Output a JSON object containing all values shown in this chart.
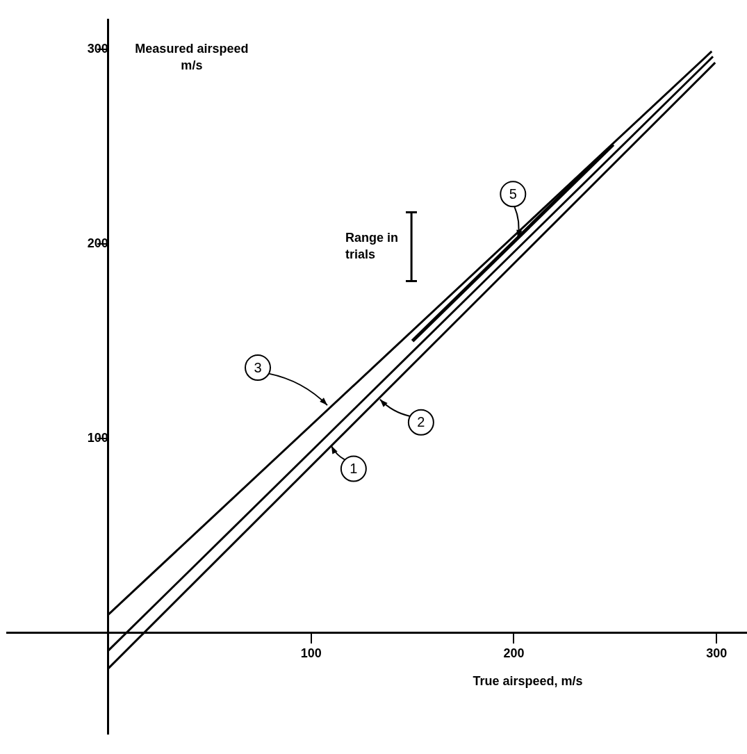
{
  "chart_data": {
    "type": "line",
    "xlabel": "True airspeed, m/s",
    "ylabel": "Measured airspeed m/s",
    "xlim": [
      -50,
      315
    ],
    "ylim": [
      -52,
      315
    ],
    "xticks": [
      100,
      200,
      300
    ],
    "yticks": [
      100,
      200,
      300
    ],
    "grid": false,
    "legend": false,
    "marker": "none",
    "line_style": "solid",
    "series": [
      {
        "x": [
          0,
          299.3
        ],
        "values": [
          -18.3,
          293.1
        ],
        "color": "#000000"
      },
      {
        "x": [
          0,
          298.2
        ],
        "values": [
          -9.1,
          296.2
        ],
        "color": "#000000"
      },
      {
        "x": [
          0,
          297.6
        ],
        "values": [
          9.4,
          298.9
        ],
        "color": "#000000"
      },
      {
        "x": [
          150,
          249
        ],
        "values": [
          150,
          251
        ],
        "color": "#000000"
      },
      {
        "name": "Range in trials",
        "x": [
          149.5,
          149.5
        ],
        "values": [
          180.7,
          216
        ],
        "color": "#000000"
      }
    ],
    "annotations": [
      {
        "text": "1",
        "x": 110,
        "y": 96.1
      },
      {
        "text": "2",
        "x": 134,
        "y": 120
      },
      {
        "text": "3",
        "x": 108,
        "y": 117
      },
      {
        "text": "5",
        "x": 202,
        "y": 203
      }
    ]
  }
}
